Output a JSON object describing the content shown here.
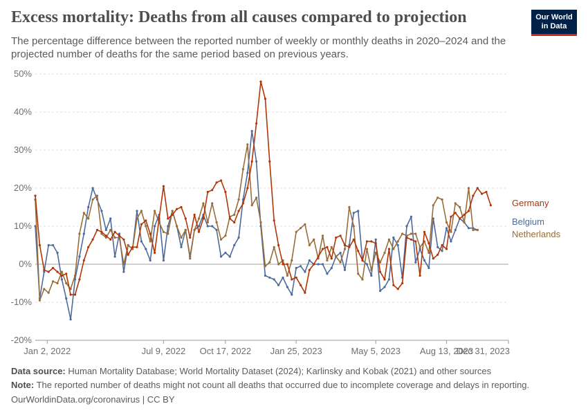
{
  "title": "Excess mortality: Deaths from all causes compared to projection",
  "subtitle": "The percentage difference between the reported number of weekly or monthly deaths in 2020–2024 and the projected number of deaths for the same period based on previous years.",
  "logo": {
    "line1": "Our World",
    "line2": "in Data"
  },
  "footer": {
    "source_label": "Data source:",
    "source_text": "Human Mortality Database; World Mortality Dataset (2024); Karlinsky and Kobak (2021) and other sources",
    "note_label": "Note:",
    "note_text": "The reported number of deaths might not count all deaths that occurred due to incomplete coverage and delays in reporting.",
    "url": "OurWorldinData.org/coronavirus | CC BY"
  },
  "chart_data": {
    "type": "line",
    "xlabel": "",
    "ylabel": "",
    "ylim": [
      -20,
      50
    ],
    "yticks": [
      -20,
      -10,
      0,
      10,
      20,
      30,
      40,
      50
    ],
    "ytick_labels": [
      "-20%",
      "-10%",
      "0%",
      "10%",
      "20%",
      "30%",
      "40%",
      "50%"
    ],
    "xlim": [
      0,
      107
    ],
    "xtick_positions": [
      2.7,
      29,
      43,
      59,
      77,
      93,
      107
    ],
    "xtick_labels": [
      "Jan 2, 2022",
      "Jul 9, 2022",
      "Oct 17, 2022",
      "Jan 25, 2023",
      "May 5, 2023",
      "Aug 13, 2023",
      "Dec 31, 2023"
    ],
    "series": [
      {
        "name": "Belgium",
        "color": "#4c6a9c",
        "values": [
          10,
          -9,
          -2,
          5,
          5,
          3,
          -4,
          -9,
          -14.5,
          -4,
          2,
          8,
          15,
          20,
          17,
          14,
          9,
          12,
          2,
          8,
          -2,
          5,
          4,
          14,
          6,
          4,
          1,
          10,
          13,
          1,
          10,
          14,
          10,
          4.5,
          9,
          2,
          9,
          10,
          13,
          10,
          10,
          9,
          2,
          3,
          2,
          5,
          7,
          17,
          24,
          35,
          27,
          10,
          -3,
          -3.5,
          -4,
          -5.5,
          -3.5,
          -6,
          -8,
          -1,
          -0.5,
          -2,
          1,
          0,
          0,
          0,
          -2.5,
          -1,
          2,
          3,
          -1.5,
          5,
          13.5,
          14,
          1,
          0,
          -3,
          6.5,
          -7,
          -6,
          -4,
          7,
          5,
          -3.5,
          10,
          12.5,
          0.5,
          4,
          1,
          -1,
          12,
          4.5,
          3.5,
          9.5,
          6,
          9,
          12,
          11,
          9.5,
          9.5,
          9
        ]
      },
      {
        "name": "Netherlands",
        "color": "#986d39",
        "values": [
          17,
          -9.5,
          -6.5,
          -7.5,
          -4.5,
          -5,
          -2,
          -5,
          -6.5,
          -3,
          8,
          13.5,
          12,
          17,
          18,
          8,
          7,
          9,
          7,
          7,
          0,
          5,
          4,
          12,
          14,
          10,
          6,
          14,
          11,
          8.5,
          8,
          14,
          10,
          7,
          9,
          1.5,
          9,
          12,
          16,
          11,
          16,
          11,
          6.5,
          7.5,
          12.5,
          13,
          17,
          25,
          31.5,
          15.5,
          17.5,
          11,
          -0.5,
          0.5,
          4.5,
          0,
          1,
          -3,
          1,
          8.5,
          9.5,
          10.5,
          5,
          6.5,
          1.5,
          7.5,
          1,
          4.5,
          2,
          0.5,
          4,
          15,
          10,
          -2.5,
          -4,
          4,
          -1.5,
          3,
          0.5,
          3,
          6.5,
          4,
          6,
          8,
          7.5,
          8,
          8,
          4.5,
          6,
          3,
          15.5,
          17.5,
          17,
          11,
          8.5,
          16,
          15,
          11,
          20,
          9,
          9
        ]
      },
      {
        "name": "Germany",
        "color": "#b13507",
        "values": [
          18,
          5,
          -1.5,
          -2,
          -1,
          -2,
          -3,
          -2.5,
          -8,
          -8,
          -4,
          1,
          4.5,
          6.5,
          9,
          8.5,
          7.5,
          6.5,
          8.5,
          7.5,
          6.5,
          2.5,
          4.5,
          4.5,
          10.5,
          11.5,
          8,
          3,
          12,
          20.5,
          12,
          13,
          14.5,
          15,
          12,
          7,
          13,
          8.5,
          12,
          19,
          19.5,
          21.5,
          22,
          19,
          12,
          11,
          14,
          16,
          20,
          27,
          37,
          48,
          43.5,
          27,
          11.5,
          5,
          0,
          0,
          -4,
          -3.5,
          -5.5,
          -7.5,
          -1.5,
          0,
          2,
          4,
          4.5,
          1.5,
          7,
          7.5,
          5,
          4.5,
          6.5,
          3.5,
          1,
          6,
          6,
          5.5,
          -2,
          -4,
          4,
          -5.5,
          -6.5,
          -5,
          7,
          6.5,
          6,
          -3,
          8.5,
          5.5,
          1.5,
          2.5,
          5,
          4,
          12.5,
          13.5,
          12,
          13,
          14,
          18,
          20,
          18.5,
          19,
          15.5
        ]
      }
    ]
  }
}
